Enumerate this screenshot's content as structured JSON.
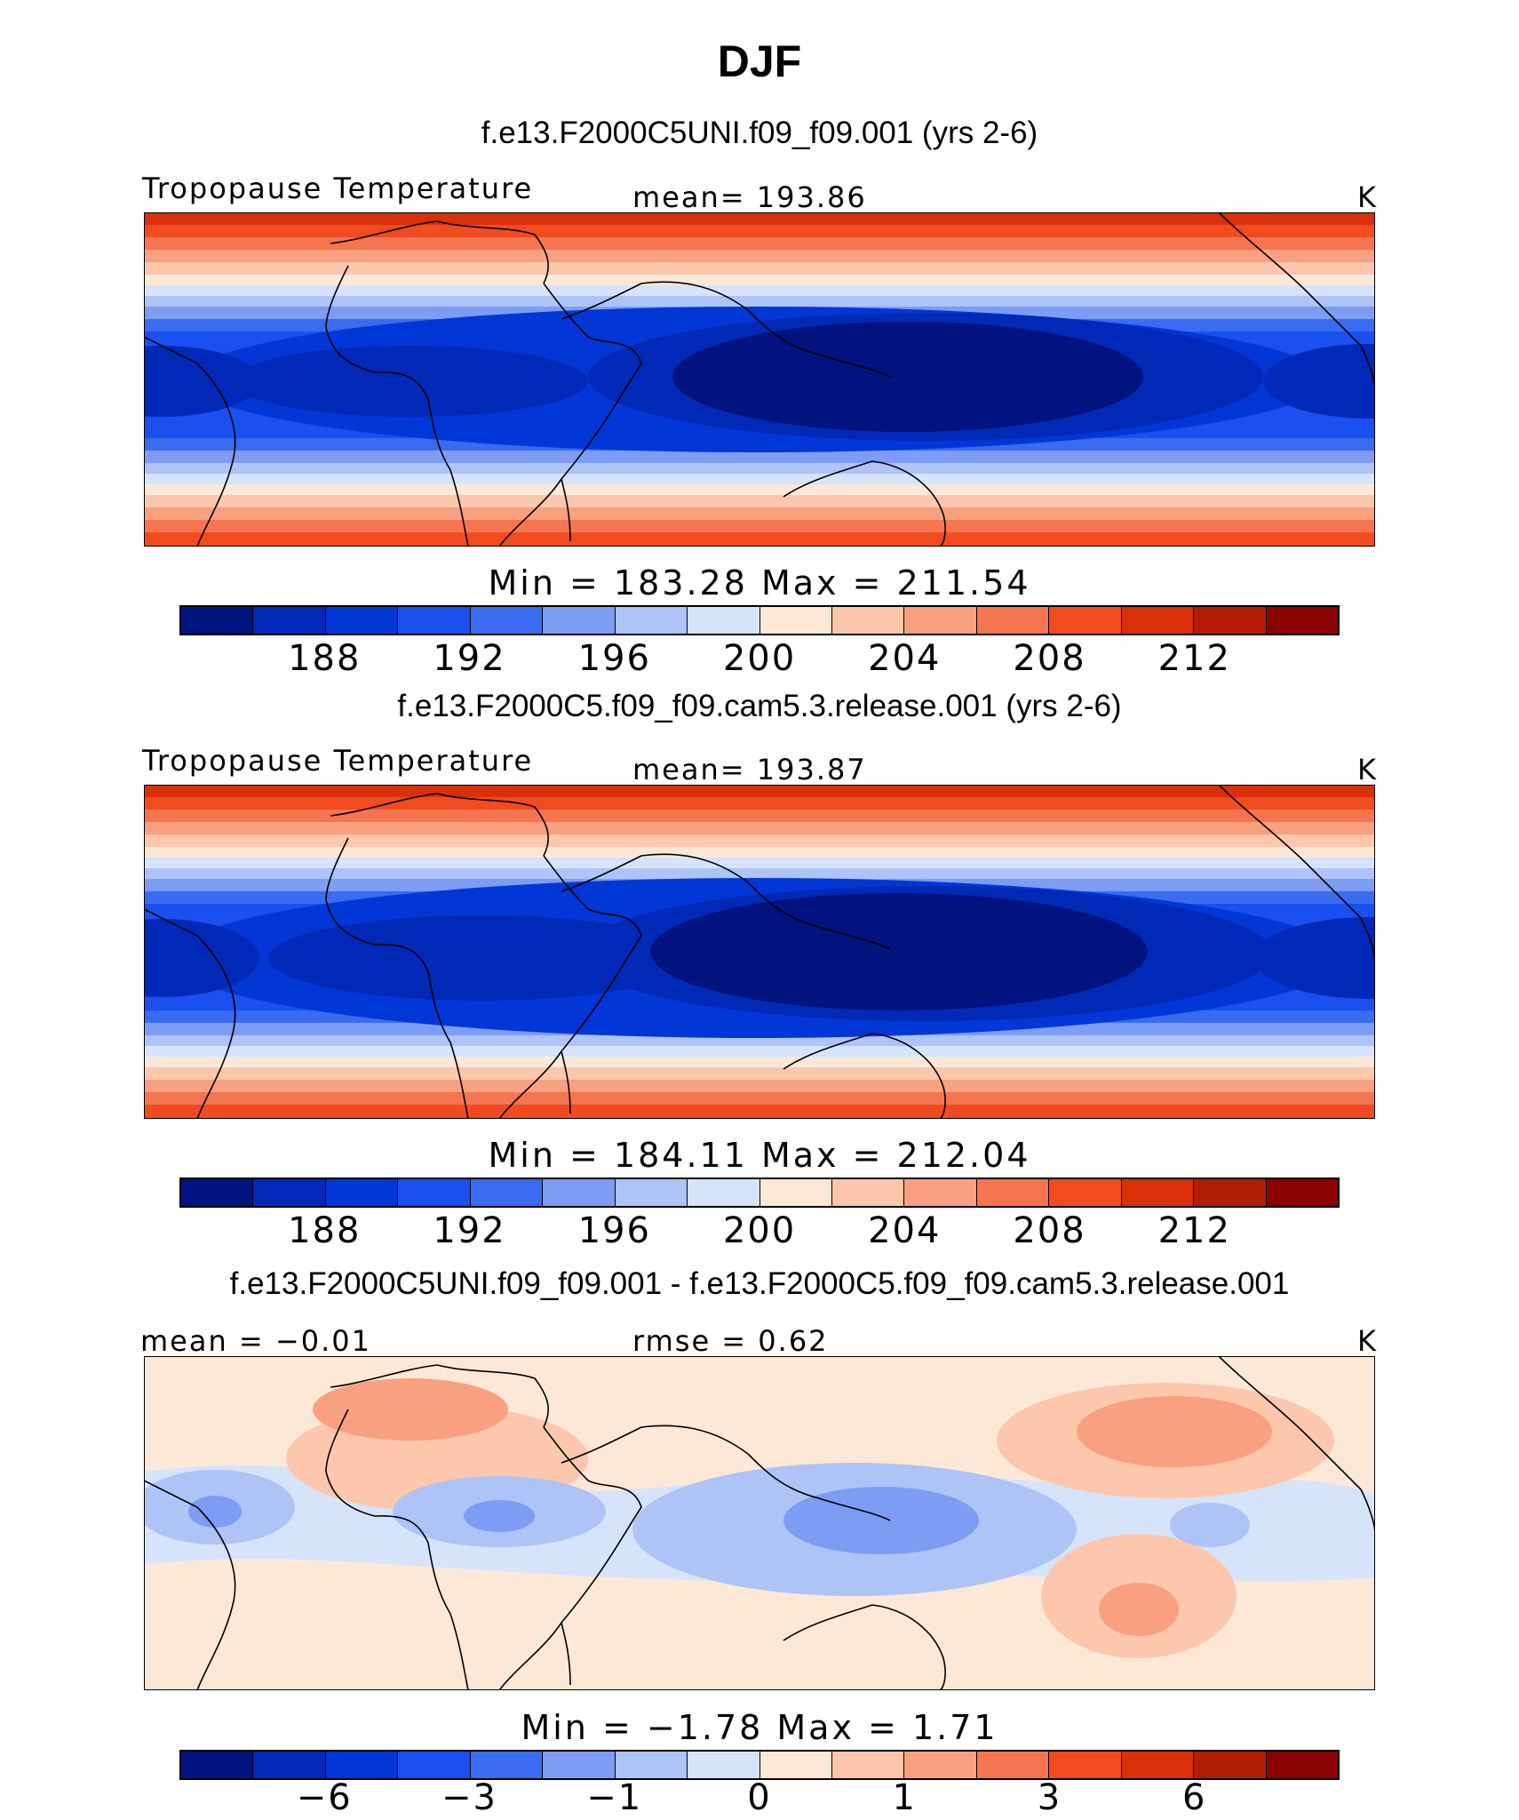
{
  "title": "DJF",
  "colors": {
    "scale": [
      "#00137e",
      "#0029b8",
      "#0037d6",
      "#1a4ff0",
      "#3a6bf0",
      "#7d9cf3",
      "#aec3f6",
      "#d5e4fb",
      "#fde8d8",
      "#fcc7ac",
      "#f9a080",
      "#f57550",
      "#f24b1f",
      "#d9300a",
      "#b31c05",
      "#8b0000"
    ],
    "coast": "#000000"
  },
  "panels": [
    {
      "id": "p1",
      "subtitle": "f.e13.F2000C5UNI.f09_f09.001 (yrs 2-6)",
      "left_label": "Tropopause Temperature",
      "center_label": "mean=  193.86",
      "units": "K",
      "minmax": "Min  =  183.28  Max  =  211.54",
      "ticks": [
        "188",
        "192",
        "196",
        "200",
        "204",
        "208",
        "212"
      ]
    },
    {
      "id": "p2",
      "subtitle": "f.e13.F2000C5.f09_f09.cam5.3.release.001 (yrs 2-6)",
      "left_label": "Tropopause Temperature",
      "center_label": "mean=  193.87",
      "units": "K",
      "minmax": "Min  =  184.11  Max  =  212.04",
      "ticks": [
        "188",
        "192",
        "196",
        "200",
        "204",
        "208",
        "212"
      ]
    },
    {
      "id": "p3",
      "subtitle": "f.e13.F2000C5UNI.f09_f09.001 - f.e13.F2000C5.f09_f09.cam5.3.release.001",
      "left_label": "mean =   −0.01",
      "center_label": "rmse =    0.62",
      "units": "K",
      "minmax": "Min  =   −1.78  Max  =    1.71",
      "ticks": [
        "−6",
        "−3",
        "−1",
        "0",
        "1",
        "3",
        "6"
      ]
    }
  ],
  "chart_data": [
    {
      "type": "heatmap",
      "title": "DJF",
      "subtitle": "f.e13.F2000C5UNI.f09_f09.001 (yrs 2-6)",
      "field": "Tropopause Temperature",
      "units": "K",
      "mean": 193.86,
      "min": 183.28,
      "max": 211.54,
      "contour_levels": [
        186,
        188,
        190,
        192,
        193,
        194,
        195,
        196,
        198,
        200,
        202,
        204,
        206,
        208,
        210,
        212
      ],
      "colorbar_ticks": [
        188,
        192,
        196,
        200,
        204,
        208,
        212
      ]
    },
    {
      "type": "heatmap",
      "subtitle": "f.e13.F2000C5.f09_f09.cam5.3.release.001 (yrs 2-6)",
      "field": "Tropopause Temperature",
      "units": "K",
      "mean": 193.87,
      "min": 184.11,
      "max": 212.04,
      "contour_levels": [
        186,
        188,
        190,
        192,
        193,
        194,
        195,
        196,
        198,
        200,
        202,
        204,
        206,
        208,
        210,
        212
      ],
      "colorbar_ticks": [
        188,
        192,
        196,
        200,
        204,
        208,
        212
      ]
    },
    {
      "type": "heatmap",
      "subtitle": "f.e13.F2000C5UNI.f09_f09.001 - f.e13.F2000C5.f09_f09.cam5.3.release.001",
      "units": "K",
      "mean": -0.01,
      "rmse": 0.62,
      "min": -1.78,
      "max": 1.71,
      "contour_levels": [
        -8,
        -6,
        -4,
        -3,
        -2,
        -1,
        -0.5,
        0,
        0.5,
        1,
        2,
        3,
        4,
        6,
        8
      ],
      "colorbar_ticks": [
        -6,
        -3,
        -1,
        0,
        1,
        3,
        6
      ]
    }
  ]
}
